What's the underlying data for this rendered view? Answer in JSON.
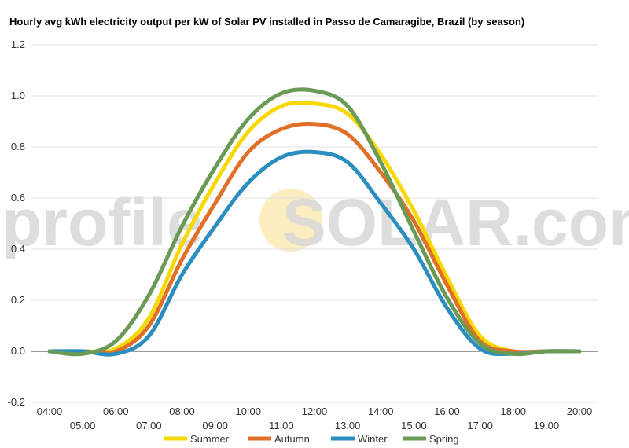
{
  "chart_data": {
    "type": "line",
    "title": "Hourly avg kWh electricity output per kW of Solar PV installed in Passo de Camaragibe, Brazil (by season)",
    "xlabel": "",
    "ylabel": "",
    "ylim": [
      -0.2,
      1.2
    ],
    "yticks": [
      "-0.2",
      "0.0",
      "0.2",
      "0.4",
      "0.6",
      "0.8",
      "1.0",
      "1.2"
    ],
    "x": [
      "04:00",
      "05:00",
      "06:00",
      "07:00",
      "08:00",
      "09:00",
      "10:00",
      "11:00",
      "12:00",
      "13:00",
      "14:00",
      "15:00",
      "16:00",
      "17:00",
      "18:00",
      "19:00",
      "20:00"
    ],
    "grid": true,
    "legend_position": "bottom",
    "series": [
      {
        "name": "Summer",
        "color": "#f7d800",
        "values": [
          0.0,
          0.0,
          0.01,
          0.13,
          0.42,
          0.66,
          0.86,
          0.96,
          0.97,
          0.93,
          0.77,
          0.55,
          0.29,
          0.06,
          0.0,
          0.0,
          0.0
        ]
      },
      {
        "name": "Autumn",
        "color": "#e07028",
        "values": [
          0.0,
          0.0,
          0.0,
          0.1,
          0.36,
          0.58,
          0.78,
          0.87,
          0.89,
          0.85,
          0.7,
          0.51,
          0.26,
          0.04,
          0.0,
          0.0,
          0.0
        ]
      },
      {
        "name": "Winter",
        "color": "#2a8fbf",
        "values": [
          0.0,
          0.0,
          -0.01,
          0.06,
          0.3,
          0.49,
          0.66,
          0.76,
          0.78,
          0.74,
          0.58,
          0.4,
          0.17,
          0.01,
          -0.01,
          0.0,
          0.0
        ]
      },
      {
        "name": "Spring",
        "color": "#6a9a55",
        "values": [
          0.0,
          -0.01,
          0.04,
          0.22,
          0.49,
          0.72,
          0.91,
          1.01,
          1.02,
          0.96,
          0.74,
          0.47,
          0.21,
          0.03,
          -0.01,
          0.0,
          0.0
        ]
      }
    ]
  },
  "watermark": {
    "text_before": "profile",
    "text_after": "SOLAR.com"
  },
  "colors": {
    "grid": "#e0e0e0",
    "zero_line": "#333333",
    "watermark_sun": "#fbe9b0"
  }
}
